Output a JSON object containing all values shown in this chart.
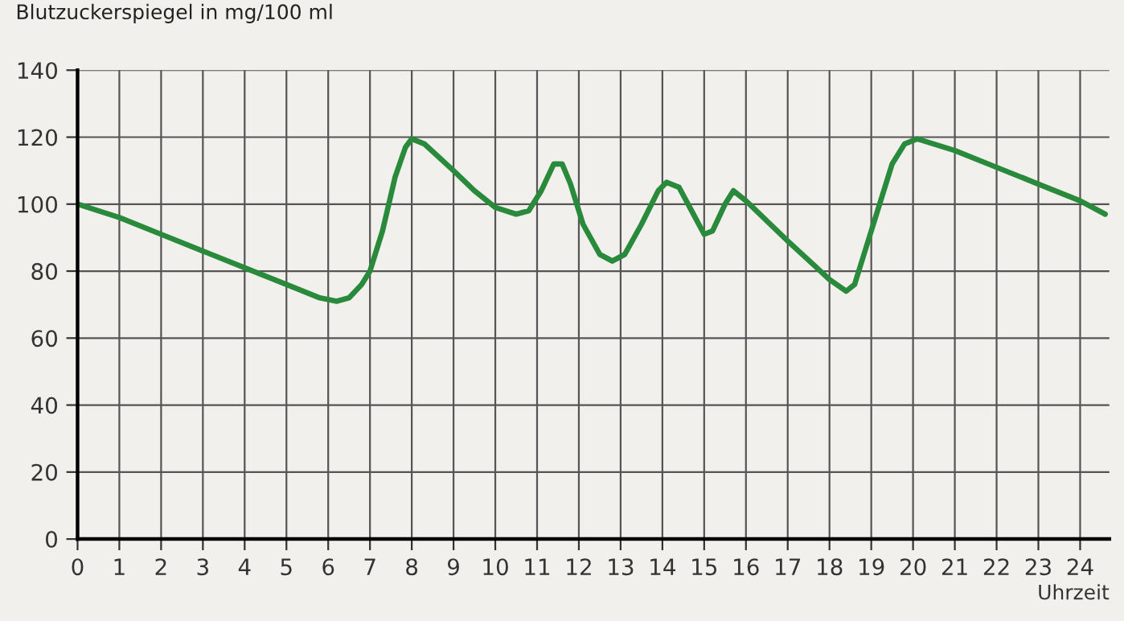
{
  "chart_data": {
    "type": "line",
    "ylabel": "Blutzuckerspiegel in mg/100 ml",
    "xlabel": "Uhrzeit",
    "xlim": [
      0,
      24.7
    ],
    "xticks": [
      0,
      1,
      2,
      3,
      4,
      5,
      6,
      7,
      8,
      9,
      10,
      11,
      12,
      13,
      14,
      15,
      16,
      17,
      18,
      19,
      20,
      21,
      22,
      23,
      24
    ],
    "ylim": [
      0,
      140
    ],
    "yticks": [
      0,
      20,
      40,
      60,
      80,
      100,
      120,
      140
    ],
    "grid": true,
    "marker": "none",
    "line_style": "solid",
    "series": [
      {
        "color": "#2a8a3c",
        "x": [
          0,
          1,
          2,
          3,
          4,
          5,
          5.8,
          6.2,
          6.5,
          6.8,
          7,
          7.3,
          7.6,
          7.85,
          8,
          8.3,
          9,
          9.5,
          10,
          10.5,
          10.8,
          11.1,
          11.4,
          11.6,
          11.8,
          12.1,
          12.5,
          12.8,
          13.1,
          13.5,
          13.9,
          14.1,
          14.4,
          14.7,
          15,
          15.2,
          15.5,
          15.7,
          16,
          17,
          18,
          18.4,
          18.6,
          18.8,
          19.2,
          19.5,
          19.8,
          20.1,
          21,
          22,
          23,
          24,
          24.6
        ],
        "values": [
          100,
          96,
          91,
          86,
          81,
          76,
          72,
          71,
          72,
          76,
          80,
          92,
          108,
          117,
          119.5,
          118,
          110,
          104,
          99,
          97,
          98,
          104,
          112,
          112,
          106,
          94,
          85,
          83,
          85,
          94,
          104,
          106.5,
          105,
          98,
          91,
          92,
          100,
          104,
          101,
          89,
          77.5,
          74,
          76,
          84,
          100,
          112,
          118,
          119.5,
          116,
          111,
          106,
          101,
          97
        ]
      }
    ]
  }
}
